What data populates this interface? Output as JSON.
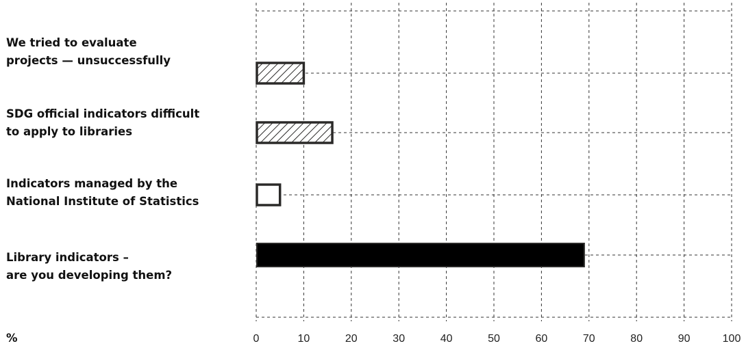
{
  "chart_data": {
    "type": "bar",
    "orientation": "horizontal",
    "unit_label": "%",
    "categories": [
      [
        "We tried to evaluate",
        "projects — unsuccessfully"
      ],
      [
        "SDG official indicators difficult",
        "to apply to libraries"
      ],
      [
        "Indicators managed by the",
        "National Institute of Statistics"
      ],
      [
        "Library indicators –",
        "are you developing them?"
      ]
    ],
    "values": [
      10,
      16,
      5,
      69
    ],
    "bar_styles": [
      "hatched",
      "hatched",
      "empty",
      "solid"
    ],
    "xlim": [
      0,
      100
    ],
    "xticks": [
      0,
      10,
      20,
      30,
      40,
      50,
      60,
      70,
      80,
      90,
      100
    ],
    "grid": "dashed",
    "colors": {
      "bar_fill": "#000000",
      "bar_stroke": "#2b2a29",
      "grid": "#333333",
      "text": "#111111"
    }
  }
}
